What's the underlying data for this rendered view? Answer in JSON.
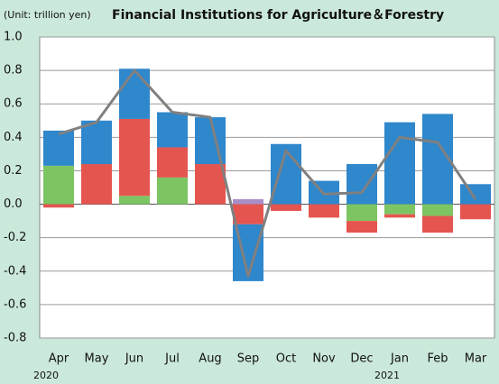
{
  "chart_data": {
    "type": "bar",
    "stacked": true,
    "subtitle": "(Unit: trillion yen)",
    "title": "Financial Institutions for Agriculture＆Forestry",
    "categories": [
      "Apr",
      "May",
      "Jun",
      "Jul",
      "Aug",
      "Sep",
      "Oct",
      "Nov",
      "Dec",
      "Jan",
      "Feb",
      "Mar"
    ],
    "sublabels": [
      "2020",
      null,
      null,
      null,
      null,
      null,
      null,
      null,
      null,
      "2021",
      null,
      null
    ],
    "series": [
      {
        "color": "#7dc462",
        "values": [
          0.23,
          null,
          0.05,
          0.16,
          null,
          null,
          null,
          null,
          -0.1,
          -0.06,
          -0.07,
          null
        ]
      },
      {
        "color": "#e5554f",
        "values": [
          -0.02,
          0.24,
          0.46,
          0.18,
          0.24,
          -0.12,
          -0.04,
          -0.08,
          -0.07,
          -0.02,
          -0.1,
          -0.09
        ]
      },
      {
        "color": "#2f87cc",
        "values": [
          0.21,
          0.26,
          0.3,
          0.21,
          0.28,
          -0.34,
          0.36,
          0.14,
          0.24,
          0.49,
          0.54,
          0.12
        ]
      },
      {
        "color": "#a98fc8",
        "values": [
          null,
          null,
          null,
          null,
          null,
          0.03,
          null,
          null,
          null,
          null,
          null,
          null
        ]
      },
      {
        "type": "line",
        "color": "#808080",
        "values": [
          0.42,
          0.49,
          0.8,
          0.55,
          0.52,
          -0.43,
          0.32,
          0.06,
          0.07,
          0.4,
          0.37,
          0.03
        ]
      }
    ],
    "ylim": [
      -0.8,
      1.0
    ],
    "yticks": [
      {
        "value": -0.8,
        "label": "-0.8"
      },
      {
        "value": -0.6,
        "label": "-0.6"
      },
      {
        "value": -0.4,
        "label": "-0.4"
      },
      {
        "value": -0.2,
        "label": "-0.2"
      },
      {
        "value": 0,
        "label": "0.0"
      },
      {
        "value": 0.2,
        "label": "0.2"
      },
      {
        "value": 0.4,
        "label": "0.4"
      },
      {
        "value": 0.6,
        "label": "0.6"
      },
      {
        "value": 0.8,
        "label": "0.8"
      },
      {
        "value": 1.0,
        "label": "1.0"
      }
    ],
    "grid": true
  }
}
